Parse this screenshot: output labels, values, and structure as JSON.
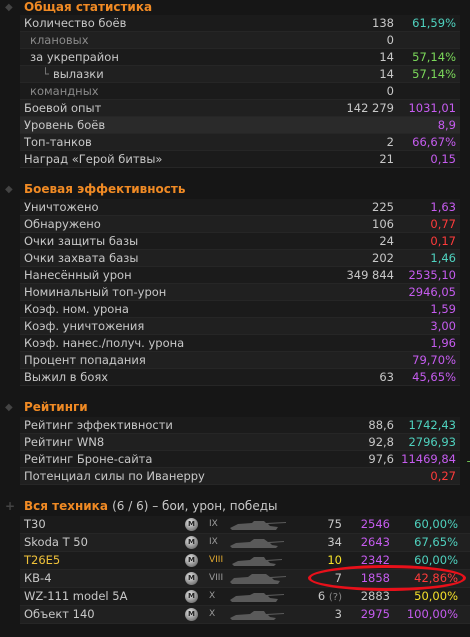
{
  "general": {
    "title": "Общая статистика",
    "rows": [
      {
        "label": "Количество боёв",
        "value": "138",
        "pct": "61,59%",
        "pct_color": "cyan"
      },
      {
        "label": "клановых",
        "value": "0",
        "pct": ""
      },
      {
        "label": "за укрепрайон",
        "value": "14",
        "pct": "57,14%",
        "pct_color": "green"
      },
      {
        "label": "вылазки",
        "value": "14",
        "pct": "57,14%",
        "pct_color": "green"
      },
      {
        "label": "командных",
        "value": "0",
        "pct": ""
      },
      {
        "label": "Боевой опыт",
        "value": "142 279",
        "pct": "1031,01",
        "pct_color": "purple"
      },
      {
        "label": "Уровень боёв",
        "value": "",
        "pct": "8,9",
        "pct_color": "purple"
      },
      {
        "label": "Топ-танков",
        "value": "2",
        "pct": "66,67%",
        "pct_color": "purple"
      },
      {
        "label": "Наград «Герой битвы»",
        "value": "21",
        "pct": "0,15",
        "pct_color": "purple"
      }
    ]
  },
  "efficiency": {
    "title": "Боевая эффективность",
    "rows": [
      {
        "label": "Уничтожено",
        "value": "225",
        "pct": "1,63"
      },
      {
        "label": "Обнаружено",
        "value": "106",
        "pct": "0,77"
      },
      {
        "label": "Очки защиты базы",
        "value": "24",
        "pct": "0,17"
      },
      {
        "label": "Очки захвата базы",
        "value": "202",
        "pct": "1,46"
      },
      {
        "label": "Нанесённый урон",
        "value": "349 844",
        "pct": "2535,10"
      },
      {
        "label": "Номинальный топ-урон",
        "value": "",
        "pct": "2946,05"
      },
      {
        "label": "Коэф. ном. урона",
        "value": "",
        "pct": "1,59"
      },
      {
        "label": "Коэф. уничтожения",
        "value": "",
        "pct": "3,00"
      },
      {
        "label": "Коэф. нанес./получ. урона",
        "value": "",
        "pct": "1,96"
      },
      {
        "label": "Процент попадания",
        "value": "",
        "pct": "79,70%"
      },
      {
        "label": "Выжил в боях",
        "value": "63",
        "pct": "45,65%"
      }
    ]
  },
  "ratings": {
    "title": "Рейтинги",
    "rows": [
      {
        "label": "Рейтинг эффективности",
        "value": "88,6",
        "pct": "1742,43"
      },
      {
        "label": "Рейтинг WN8",
        "value": "92,8",
        "pct": "2796,93"
      },
      {
        "label": "Рейтинг Броне-сайта",
        "value": "97,6",
        "pct": "11469,84"
      },
      {
        "label": "Потенциал силы по Иванерру",
        "value": "",
        "pct": "0,27"
      }
    ],
    "overflow_mark": "+"
  },
  "vehicles": {
    "title": "Вся техника",
    "subtitle": "(6 / 6) – бои, урон, победы",
    "mastery_badge": "M",
    "rows": [
      {
        "name": "T30",
        "tier": "IX",
        "battles": "75",
        "damage": "2546",
        "win": "60,00%"
      },
      {
        "name": "Skoda T 50",
        "tier": "IX",
        "battles": "34",
        "damage": "2643",
        "win": "67,65%"
      },
      {
        "name": "T26E5",
        "tier": "VIII",
        "battles": "10",
        "damage": "2342",
        "win": "60,00%"
      },
      {
        "name": "КВ-4",
        "tier": "VIII",
        "battles": "7",
        "damage": "1858",
        "win": "42,86%"
      },
      {
        "name": "WZ-111 model 5A",
        "tier": "X",
        "battles": "6",
        "battles_note": "(?)",
        "damage": "2883",
        "win": "50,00%"
      },
      {
        "name": "Объект 140",
        "tier": "X",
        "battles": "3",
        "damage": "2975",
        "win": "100,00%"
      }
    ]
  },
  "colors": {
    "accent": "#f08a24",
    "green": "#7bd85a",
    "cyan": "#4fd2bf",
    "red": "#ff3b3b",
    "purple": "#c65cf0",
    "yellow": "#f5e12a",
    "highlight_ellipse": "#e8101a"
  }
}
